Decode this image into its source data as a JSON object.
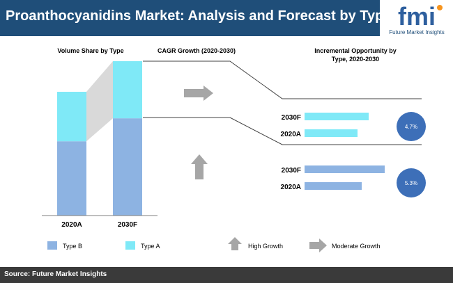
{
  "header": {
    "title": "Proanthocyanidins Market: Analysis and Forecast by Type"
  },
  "logo": {
    "mark": "fmi",
    "name": "Future Market Insights"
  },
  "footer": {
    "source": "Source: Future Market Insights"
  },
  "colors": {
    "header_bg": "#1f4e79",
    "type_b": "#8db3e2",
    "type_a": "#7fe9f7",
    "circle": "#3d6fb8",
    "arrow": "#a6a6a6",
    "footer_bg": "#3a3a3a"
  },
  "chart_data": [
    {
      "type": "bar",
      "title": "Volume Share by Type",
      "stacked": true,
      "categories": [
        "2020A",
        "2030F"
      ],
      "series": [
        {
          "name": "Type B",
          "values": [
            60,
            63
          ]
        },
        {
          "name": "Type A",
          "values": [
            40,
            37
          ]
        }
      ],
      "ylim": [
        0,
        100
      ]
    },
    {
      "type": "table",
      "title": "CAGR Growth (2020-2030)",
      "rows": [
        {
          "series": "Type A",
          "cagr": "4.7%",
          "indicator": "Moderate Growth"
        },
        {
          "series": "Type B",
          "cagr": "5.3%",
          "indicator": "High Growth"
        }
      ]
    },
    {
      "type": "bar",
      "orientation": "horizontal",
      "title": "Incremental Opportunity by Type, 2020-2030",
      "groups": [
        {
          "series": "Type A",
          "cagr_label": "4.7%",
          "categories": [
            "2030F",
            "2020A"
          ],
          "values": [
            92,
            76
          ]
        },
        {
          "series": "Type B",
          "cagr_label": "5.3%",
          "categories": [
            "2030F",
            "2020A"
          ],
          "values": [
            115,
            82
          ]
        }
      ]
    }
  ],
  "legend": {
    "type_b": "Type B",
    "type_a": "Type A",
    "high_growth": "High Growth",
    "moderate_growth": "Moderate Growth"
  }
}
